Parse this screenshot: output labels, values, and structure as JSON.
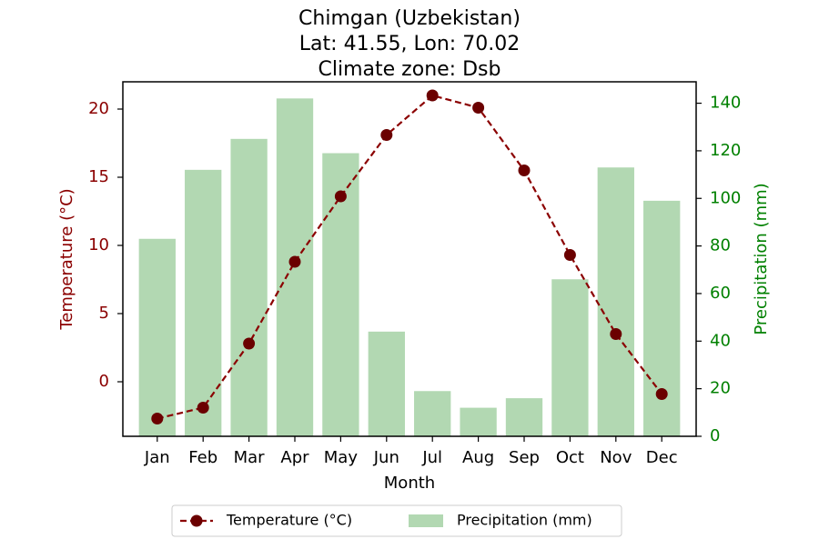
{
  "chart_data": {
    "type": "bar+line",
    "title": {
      "lines": [
        "Chimgan (Uzbekistan)",
        "Lat: 41.55, Lon: 70.02",
        "Climate zone: Dsb"
      ]
    },
    "categories": [
      "Jan",
      "Feb",
      "Mar",
      "Apr",
      "May",
      "Jun",
      "Jul",
      "Aug",
      "Sep",
      "Oct",
      "Nov",
      "Dec"
    ],
    "xlabel": "Month",
    "left_axis": {
      "label": "Temperature (°C)",
      "color": "#8b0000",
      "ylim": [
        -4.0,
        22.0
      ],
      "ticks": [
        0,
        5,
        10,
        15,
        20
      ],
      "tick_labels": [
        "0",
        "5",
        "10",
        "15",
        "20"
      ]
    },
    "right_axis": {
      "label": "Precipitation (mm)",
      "color": "#008000",
      "ylim": [
        0,
        149
      ],
      "ticks": [
        0,
        20,
        40,
        60,
        80,
        100,
        120,
        140
      ],
      "tick_labels": [
        "0",
        "20",
        "40",
        "60",
        "80",
        "100",
        "120",
        "140"
      ]
    },
    "series": [
      {
        "name": "Temperature (°C)",
        "type": "line",
        "axis": "left",
        "color": "#8b0000",
        "marker_color": "#6b0000",
        "line_style": "dashed",
        "marker": "circle",
        "values": [
          -2.7,
          -1.9,
          2.8,
          8.8,
          13.6,
          18.1,
          21.0,
          20.1,
          15.5,
          9.3,
          3.5,
          -0.9
        ]
      },
      {
        "name": "Precipitation (mm)",
        "type": "bar",
        "axis": "right",
        "color": "#b2d8b2",
        "values": [
          83,
          112,
          125,
          142,
          119,
          44,
          19,
          12,
          16,
          66,
          113,
          99
        ]
      }
    ],
    "legend": {
      "position": "bottom-center",
      "entries": [
        "Temperature (°C)",
        "Precipitation (mm)"
      ]
    },
    "grid": false
  }
}
